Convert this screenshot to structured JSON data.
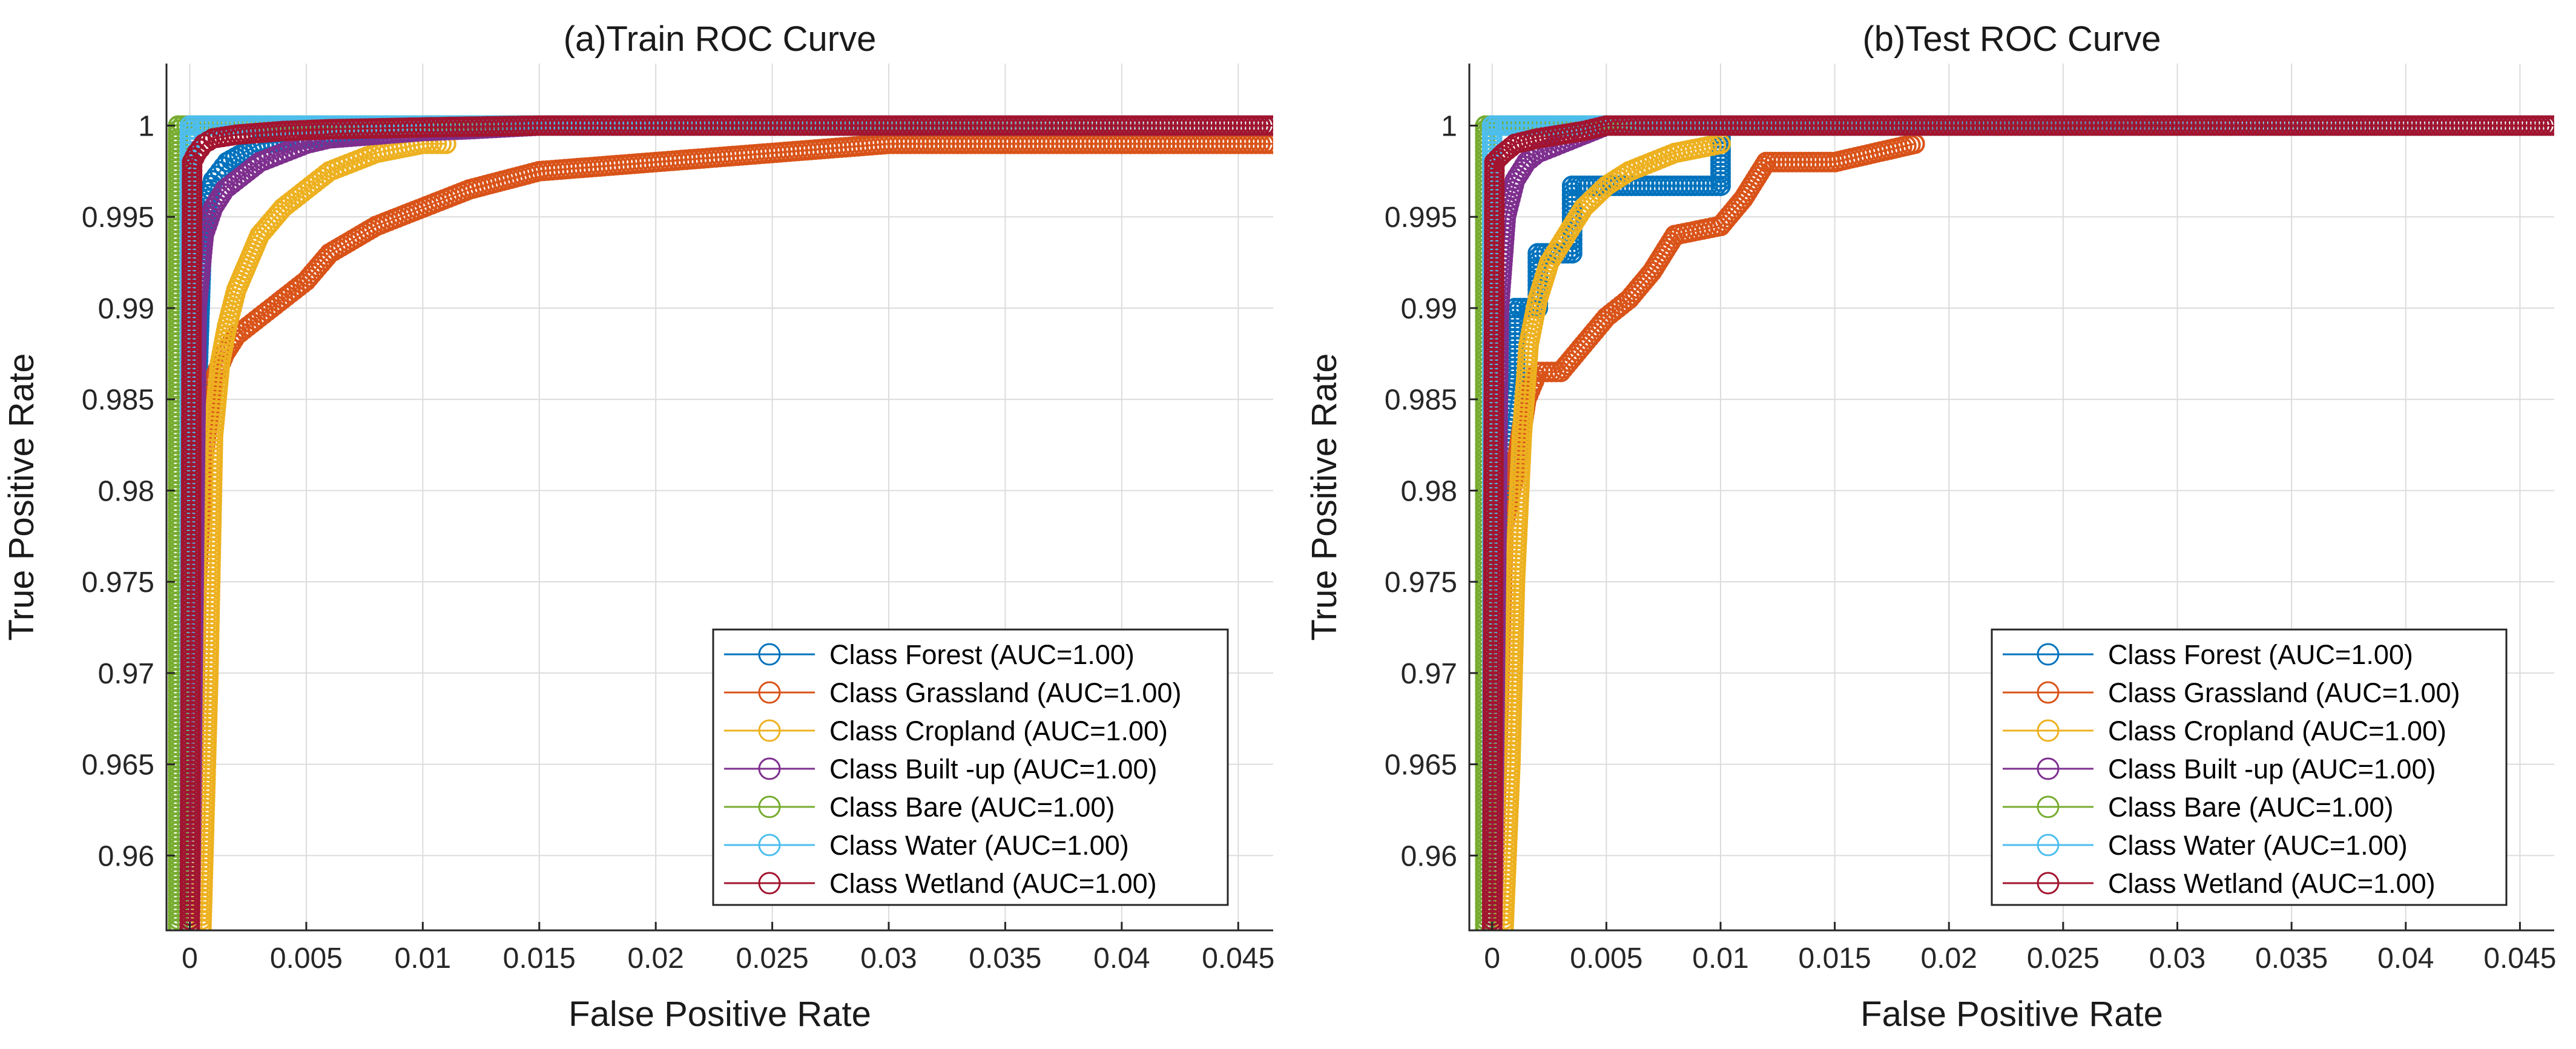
{
  "chart_data": [
    {
      "type": "line",
      "title": "(a)Train ROC Curve",
      "xlabel": "False Positive Rate",
      "ylabel": "True Positive Rate",
      "xlim": [
        -0.001,
        0.0465
      ],
      "ylim": [
        0.9559,
        1.0034
      ],
      "xticks": [
        0,
        0.005,
        0.01,
        0.015,
        0.02,
        0.025,
        0.03,
        0.035,
        0.04,
        0.045
      ],
      "xtick_labels": [
        "0",
        "0.005",
        "0.01",
        "0.015",
        "0.02",
        "0.025",
        "0.03",
        "0.035",
        "0.04",
        "0.045"
      ],
      "yticks": [
        0.96,
        0.965,
        0.97,
        0.975,
        0.98,
        0.985,
        0.99,
        0.995,
        1
      ],
      "ytick_labels": [
        "0.96",
        "0.965",
        "0.97",
        "0.975",
        "0.98",
        "0.985",
        "0.99",
        "0.995",
        "1"
      ],
      "grid": true,
      "legend_location": "bottom-right",
      "series": [
        {
          "name": "Class Forest (AUC=1.00)",
          "color": "#0072BD",
          "x": [
            0,
            0.0003,
            0.0005,
            0.0008,
            0.001,
            0.0013,
            0.0016,
            0.003,
            0.01,
            0.0465
          ],
          "y": [
            0.956,
            0.985,
            0.993,
            0.996,
            0.997,
            0.9975,
            0.998,
            0.999,
            1,
            1
          ]
        },
        {
          "name": "Class Grassland (AUC=1.00)",
          "color": "#D95319",
          "x": [
            0,
            0.0003,
            0.0006,
            0.001,
            0.0015,
            0.002,
            0.003,
            0.004,
            0.005,
            0.006,
            0.008,
            0.01,
            0.012,
            0.015,
            0.02,
            0.025,
            0.03,
            0.04,
            0.0465
          ],
          "y": [
            0.956,
            0.975,
            0.982,
            0.986,
            0.9875,
            0.9885,
            0.9895,
            0.9905,
            0.9915,
            0.993,
            0.9945,
            0.9955,
            0.9965,
            0.9975,
            0.998,
            0.9985,
            0.999,
            0.999,
            0.999
          ]
        },
        {
          "name": "Class Cropland (AUC=1.00)",
          "color": "#EDB120",
          "x": [
            0.0005,
            0.0008,
            0.001,
            0.0013,
            0.0016,
            0.002,
            0.0025,
            0.003,
            0.004,
            0.005,
            0.006,
            0.007,
            0.008,
            0.01,
            0.011
          ],
          "y": [
            0.956,
            0.97,
            0.983,
            0.987,
            0.989,
            0.991,
            0.9925,
            0.994,
            0.9955,
            0.9965,
            0.9975,
            0.998,
            0.9985,
            0.999,
            0.999
          ]
        },
        {
          "name": "Class Built -up (AUC=1.00)",
          "color": "#7E2F8E",
          "x": [
            0,
            0.0003,
            0.0006,
            0.001,
            0.0015,
            0.002,
            0.003,
            0.004,
            0.005,
            0.006,
            0.008,
            0.01,
            0.012,
            0.015,
            0.0465
          ],
          "y": [
            0.956,
            0.99,
            0.994,
            0.9955,
            0.9965,
            0.997,
            0.998,
            0.9985,
            0.999,
            0.9993,
            0.9995,
            0.9997,
            0.9998,
            1,
            1
          ]
        },
        {
          "name": "Class Bare (AUC=1.00)",
          "color": "#77AC30",
          "x": [
            -0.0005,
            -0.0005,
            0.0465
          ],
          "y": [
            0.956,
            1,
            1
          ]
        },
        {
          "name": "Class Water (AUC=1.00)",
          "color": "#4DBEEE",
          "x": [
            0,
            0,
            0.0465
          ],
          "y": [
            0.956,
            1,
            1
          ]
        },
        {
          "name": "Class Wetland (AUC=1.00)",
          "color": "#A2142F",
          "x": [
            0,
            0.0001,
            0.0003,
            0.0006,
            0.001,
            0.002,
            0.004,
            0.006,
            0.01,
            0.015,
            0.02,
            0.0465
          ],
          "y": [
            0.956,
            0.998,
            0.9985,
            0.999,
            0.9993,
            0.9995,
            0.9997,
            0.9998,
            0.9999,
            1,
            1,
            1
          ]
        }
      ]
    },
    {
      "type": "line",
      "title": "(b)Test ROC Curve",
      "xlabel": "False Positive Rate",
      "ylabel": "True Positive Rate",
      "xlim": [
        -0.001,
        0.0465
      ],
      "ylim": [
        0.9559,
        1.0034
      ],
      "xticks": [
        0,
        0.005,
        0.01,
        0.015,
        0.02,
        0.025,
        0.03,
        0.035,
        0.04,
        0.045
      ],
      "xtick_labels": [
        "0",
        "0.005",
        "0.01",
        "0.015",
        "0.02",
        "0.025",
        "0.03",
        "0.035",
        "0.04",
        "0.045"
      ],
      "yticks": [
        0.96,
        0.965,
        0.97,
        0.975,
        0.98,
        0.985,
        0.99,
        0.995,
        1
      ],
      "ytick_labels": [
        "0.96",
        "0.965",
        "0.97",
        "0.975",
        "0.98",
        "0.985",
        "0.99",
        "0.995",
        "1"
      ],
      "grid": true,
      "legend_location": "bottom-right",
      "series": [
        {
          "name": "Class Forest (AUC=1.00)",
          "color": "#0072BD",
          "x": [
            0,
            0.0003,
            0.0006,
            0.001,
            0.001,
            0.002,
            0.002,
            0.0035,
            0.0035,
            0.01,
            0.01,
            0.0465
          ],
          "y": [
            0.956,
            0.975,
            0.983,
            0.986,
            0.99,
            0.99,
            0.993,
            0.993,
            0.9967,
            0.9967,
            1,
            1
          ]
        },
        {
          "name": "Class Grassland (AUC=1.00)",
          "color": "#D95319",
          "x": [
            0,
            0.0005,
            0.001,
            0.0015,
            0.002,
            0.003,
            0.004,
            0.005,
            0.006,
            0.007,
            0.008,
            0.01,
            0.011,
            0.012,
            0.015,
            0.0185
          ],
          "y": [
            0.956,
            0.978,
            0.981,
            0.985,
            0.9865,
            0.9865,
            0.988,
            0.9895,
            0.9905,
            0.992,
            0.994,
            0.9945,
            0.996,
            0.998,
            0.998,
            0.999
          ]
        },
        {
          "name": "Class Cropland (AUC=1.00)",
          "color": "#EDB120",
          "x": [
            0.0005,
            0.0008,
            0.001,
            0.0013,
            0.0016,
            0.002,
            0.0025,
            0.003,
            0.004,
            0.005,
            0.006,
            0.007,
            0.008,
            0.01
          ],
          "y": [
            0.956,
            0.965,
            0.975,
            0.983,
            0.988,
            0.9905,
            0.9925,
            0.9935,
            0.9955,
            0.9967,
            0.9975,
            0.998,
            0.9985,
            0.999
          ]
        },
        {
          "name": "Class Built -up (AUC=1.00)",
          "color": "#7E2F8E",
          "x": [
            0,
            0.0003,
            0.0006,
            0.001,
            0.0015,
            0.002,
            0.003,
            0.005,
            0.0465
          ],
          "y": [
            0.956,
            0.99,
            0.995,
            0.997,
            0.998,
            0.9985,
            0.999,
            1,
            1
          ]
        },
        {
          "name": "Class Bare (AUC=1.00)",
          "color": "#77AC30",
          "x": [
            -0.0003,
            -0.0003,
            0.0465
          ],
          "y": [
            0.956,
            1,
            1
          ]
        },
        {
          "name": "Class Water (AUC=1.00)",
          "color": "#4DBEEE",
          "x": [
            0,
            0,
            0.0465
          ],
          "y": [
            0.956,
            1,
            1
          ]
        },
        {
          "name": "Class Wetland (AUC=1.00)",
          "color": "#A2142F",
          "x": [
            0,
            0.0001,
            0.0005,
            0.001,
            0.002,
            0.003,
            0.004,
            0.005,
            0.006,
            0.0465
          ],
          "y": [
            0.956,
            0.998,
            0.9985,
            0.999,
            0.9993,
            0.9995,
            0.9997,
            1,
            1,
            1
          ]
        }
      ]
    }
  ]
}
